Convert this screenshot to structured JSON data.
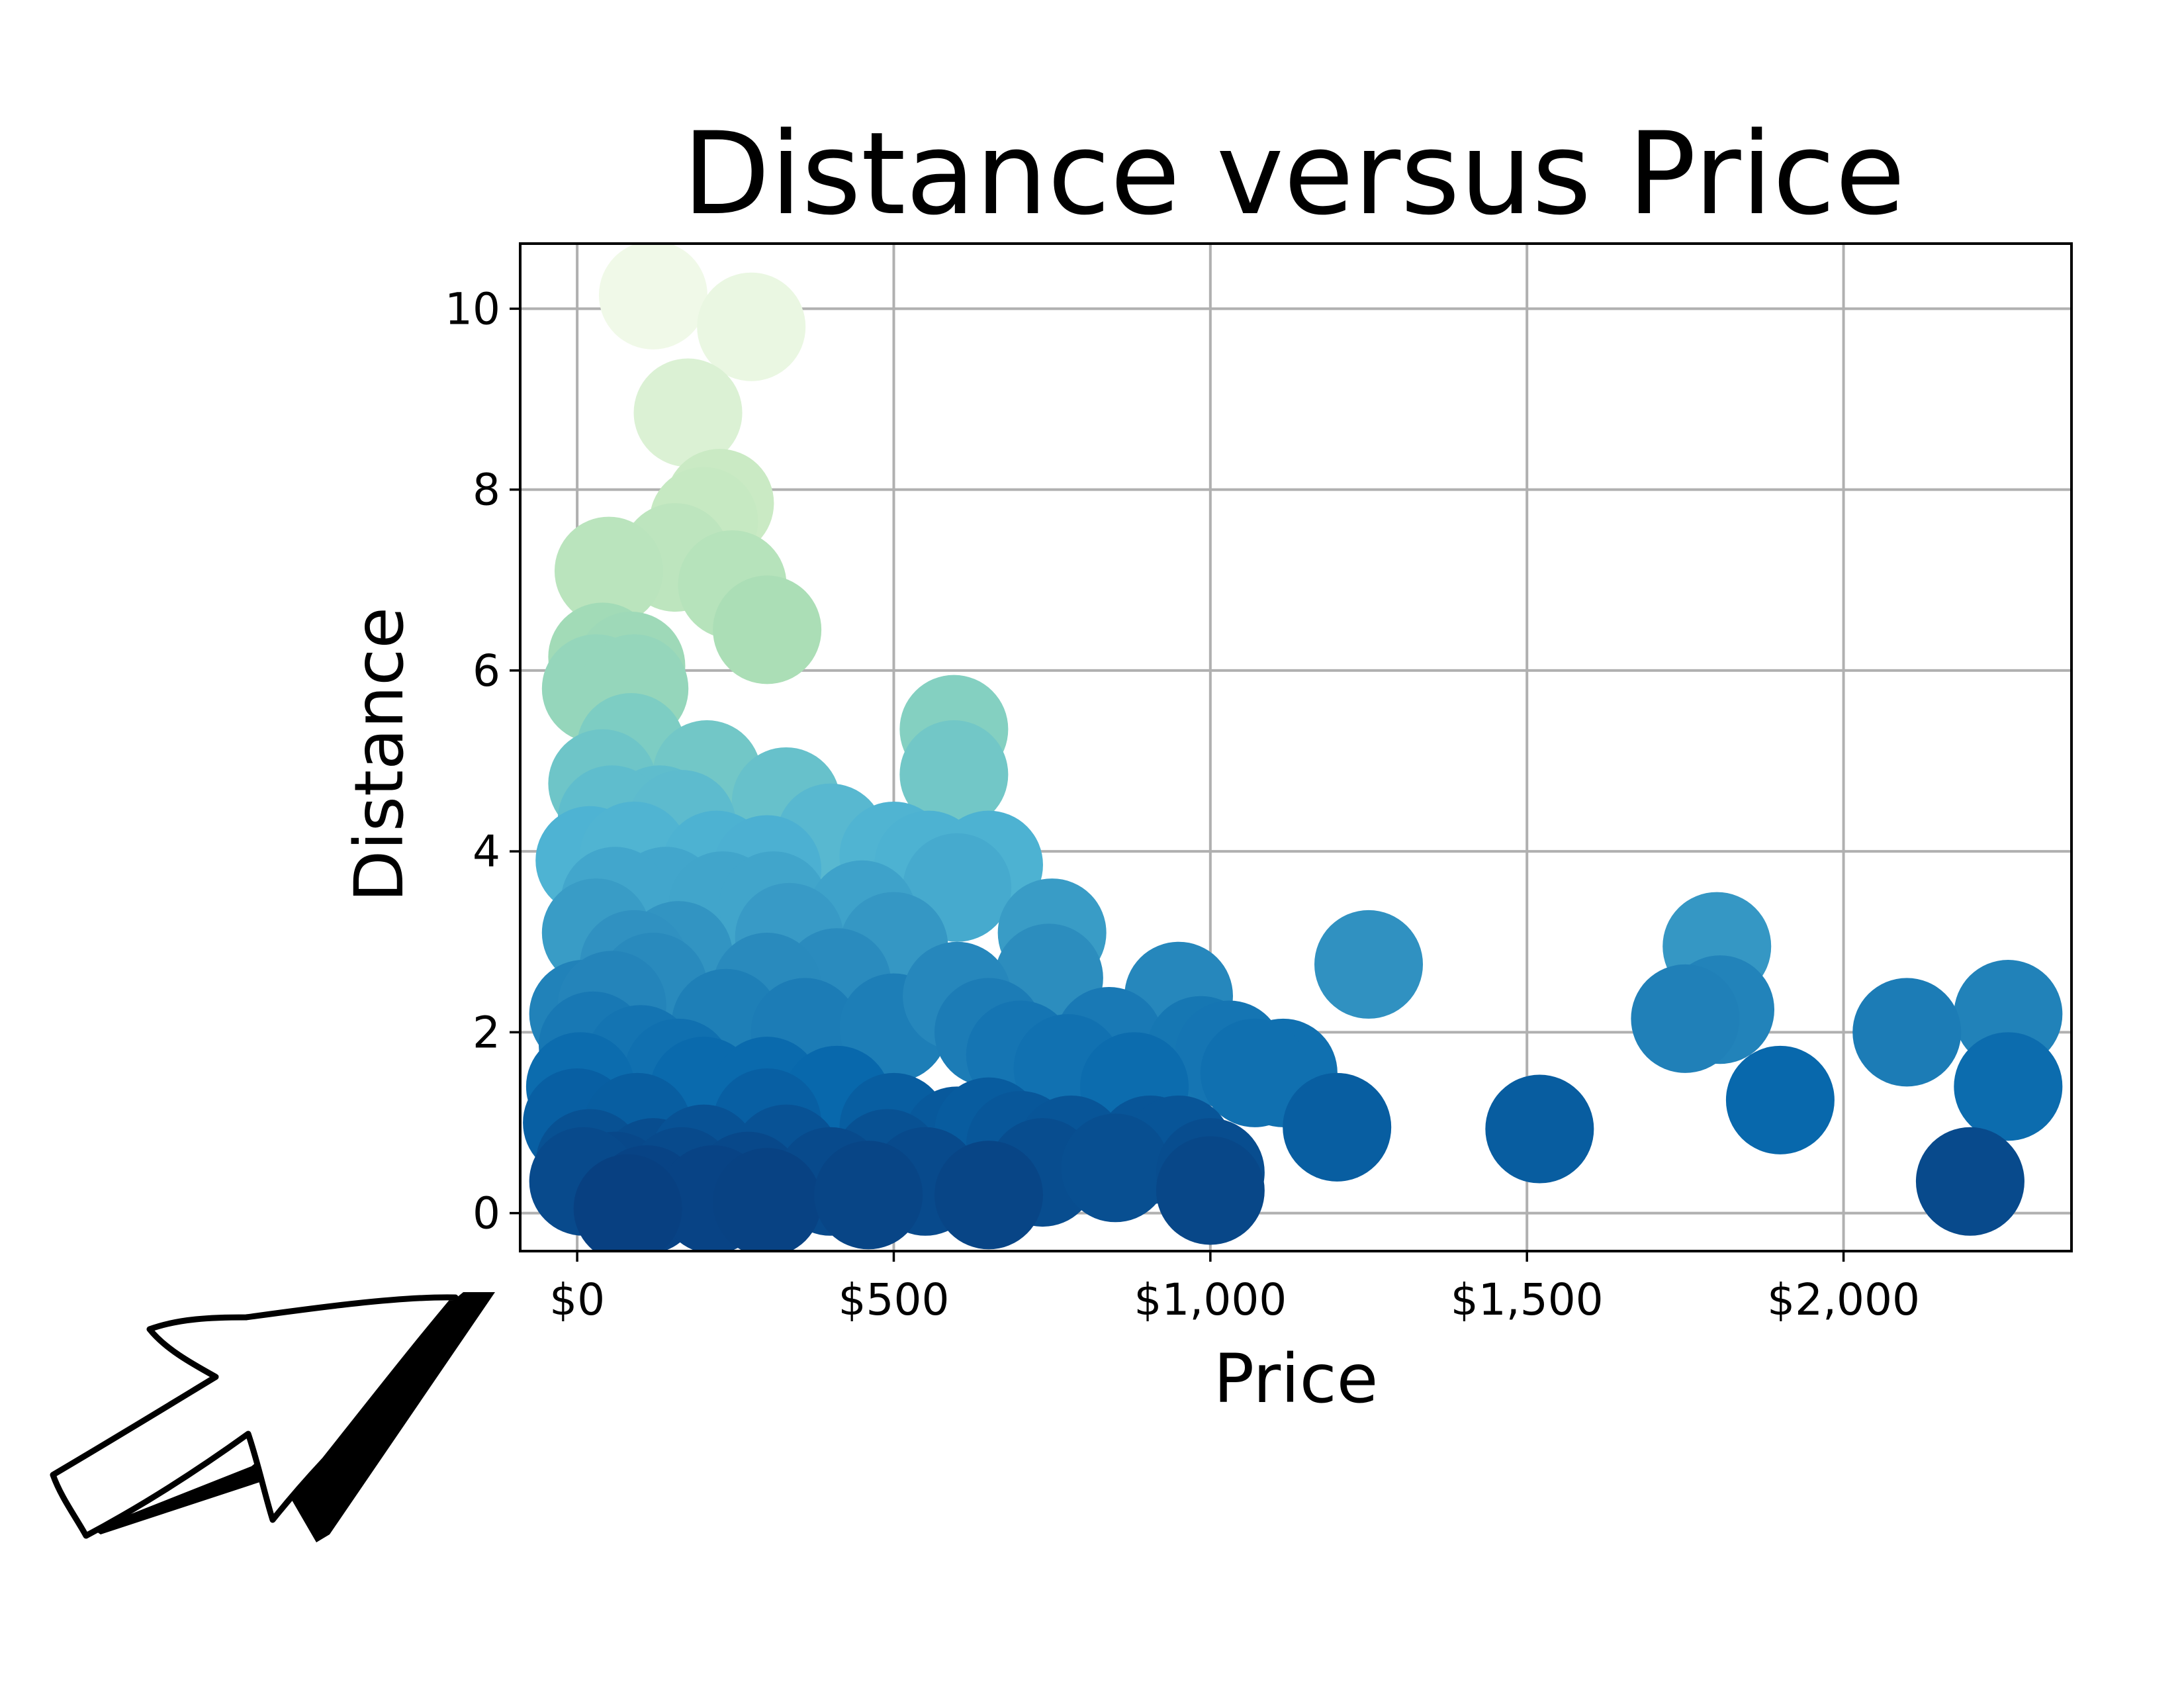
{
  "chart_data": {
    "type": "scatter",
    "title": "Distance versus Price",
    "xlabel": "Price",
    "ylabel": "Distance",
    "xlim": [
      -90,
      2360
    ],
    "ylim": [
      -0.42,
      10.72
    ],
    "grid": true,
    "legend": "none",
    "marker": "circle",
    "colormap": "GnBu",
    "color_by": "y",
    "x_ticks": [
      {
        "value": 0,
        "label": "$0"
      },
      {
        "value": 500,
        "label": "$500"
      },
      {
        "value": 1000,
        "label": "$1,000"
      },
      {
        "value": 1500,
        "label": "$1,500"
      },
      {
        "value": 2000,
        "label": "$2,000"
      }
    ],
    "y_ticks": [
      {
        "value": 0,
        "label": "0"
      },
      {
        "value": 2,
        "label": "2"
      },
      {
        "value": 4,
        "label": "4"
      },
      {
        "value": 6,
        "label": "6"
      },
      {
        "value": 8,
        "label": "8"
      },
      {
        "value": 10,
        "label": "10"
      }
    ],
    "points": [
      {
        "x": 120,
        "y": 10.15
      },
      {
        "x": 275,
        "y": 9.8
      },
      {
        "x": 175,
        "y": 8.85
      },
      {
        "x": 225,
        "y": 7.85
      },
      {
        "x": 200,
        "y": 7.65
      },
      {
        "x": 155,
        "y": 7.25
      },
      {
        "x": 50,
        "y": 7.1
      },
      {
        "x": 245,
        "y": 6.95
      },
      {
        "x": 300,
        "y": 6.45
      },
      {
        "x": 40,
        "y": 6.15
      },
      {
        "x": 85,
        "y": 6.05
      },
      {
        "x": 30,
        "y": 5.8
      },
      {
        "x": 90,
        "y": 5.8
      },
      {
        "x": 595,
        "y": 5.35
      },
      {
        "x": 595,
        "y": 4.85
      },
      {
        "x": 85,
        "y": 5.15
      },
      {
        "x": 40,
        "y": 4.75
      },
      {
        "x": 205,
        "y": 4.85
      },
      {
        "x": 330,
        "y": 4.55
      },
      {
        "x": 400,
        "y": 4.15
      },
      {
        "x": 130,
        "y": 4.35
      },
      {
        "x": 55,
        "y": 4.35
      },
      {
        "x": 165,
        "y": 4.3
      },
      {
        "x": 20,
        "y": 3.9
      },
      {
        "x": 90,
        "y": 3.95
      },
      {
        "x": 220,
        "y": 3.85
      },
      {
        "x": 300,
        "y": 3.8
      },
      {
        "x": 500,
        "y": 3.95
      },
      {
        "x": 555,
        "y": 3.85
      },
      {
        "x": 650,
        "y": 3.85
      },
      {
        "x": 600,
        "y": 3.6
      },
      {
        "x": 140,
        "y": 3.45
      },
      {
        "x": 60,
        "y": 3.45
      },
      {
        "x": 230,
        "y": 3.4
      },
      {
        "x": 310,
        "y": 3.4
      },
      {
        "x": 450,
        "y": 3.3
      },
      {
        "x": 30,
        "y": 3.1
      },
      {
        "x": 335,
        "y": 3.05
      },
      {
        "x": 750,
        "y": 3.1
      },
      {
        "x": 160,
        "y": 2.85
      },
      {
        "x": 500,
        "y": 2.95
      },
      {
        "x": 90,
        "y": 2.75
      },
      {
        "x": 120,
        "y": 2.5
      },
      {
        "x": 410,
        "y": 2.55
      },
      {
        "x": 745,
        "y": 2.6
      },
      {
        "x": 300,
        "y": 2.5
      },
      {
        "x": 1250,
        "y": 2.75
      },
      {
        "x": 1800,
        "y": 2.95
      },
      {
        "x": 1805,
        "y": 2.25
      },
      {
        "x": 1750,
        "y": 2.15
      },
      {
        "x": 950,
        "y": 2.4
      },
      {
        "x": 2260,
        "y": 2.2
      },
      {
        "x": 2100,
        "y": 2.0
      },
      {
        "x": 10,
        "y": 2.2
      },
      {
        "x": 55,
        "y": 2.3
      },
      {
        "x": 235,
        "y": 2.1
      },
      {
        "x": 360,
        "y": 2.0
      },
      {
        "x": 500,
        "y": 2.05
      },
      {
        "x": 600,
        "y": 2.4
      },
      {
        "x": 650,
        "y": 2.0
      },
      {
        "x": 840,
        "y": 1.9
      },
      {
        "x": 985,
        "y": 1.8
      },
      {
        "x": 1030,
        "y": 1.75
      },
      {
        "x": 1115,
        "y": 1.55
      },
      {
        "x": 1070,
        "y": 1.55
      },
      {
        "x": 25,
        "y": 1.85
      },
      {
        "x": 100,
        "y": 1.7
      },
      {
        "x": 160,
        "y": 1.55
      },
      {
        "x": 700,
        "y": 1.75
      },
      {
        "x": 775,
        "y": 1.6
      },
      {
        "x": 880,
        "y": 1.4
      },
      {
        "x": 2260,
        "y": 1.4
      },
      {
        "x": 1900,
        "y": 1.25
      },
      {
        "x": 5,
        "y": 1.4
      },
      {
        "x": 200,
        "y": 1.35
      },
      {
        "x": 300,
        "y": 1.35
      },
      {
        "x": 410,
        "y": 1.25
      },
      {
        "x": 1200,
        "y": 0.95
      },
      {
        "x": 1520,
        "y": 0.93
      },
      {
        "x": 0,
        "y": 1.0
      },
      {
        "x": 95,
        "y": 0.95
      },
      {
        "x": 300,
        "y": 1.0
      },
      {
        "x": 500,
        "y": 0.95
      },
      {
        "x": 600,
        "y": 0.8
      },
      {
        "x": 650,
        "y": 0.9
      },
      {
        "x": 700,
        "y": 0.75
      },
      {
        "x": 780,
        "y": 0.7
      },
      {
        "x": 905,
        "y": 0.7
      },
      {
        "x": 950,
        "y": 0.7
      },
      {
        "x": 20,
        "y": 0.55
      },
      {
        "x": 120,
        "y": 0.45
      },
      {
        "x": 200,
        "y": 0.6
      },
      {
        "x": 330,
        "y": 0.6
      },
      {
        "x": 490,
        "y": 0.55
      },
      {
        "x": 735,
        "y": 0.45
      },
      {
        "x": 850,
        "y": 0.5
      },
      {
        "x": 1000,
        "y": 0.45
      },
      {
        "x": 2200,
        "y": 0.35
      },
      {
        "x": 60,
        "y": 0.3
      },
      {
        "x": 165,
        "y": 0.35
      },
      {
        "x": 270,
        "y": 0.3
      },
      {
        "x": 400,
        "y": 0.35
      },
      {
        "x": 550,
        "y": 0.35
      },
      {
        "x": 10,
        "y": 0.35
      },
      {
        "x": 110,
        "y": 0.15
      },
      {
        "x": 215,
        "y": 0.15
      },
      {
        "x": 300,
        "y": 0.12
      },
      {
        "x": 460,
        "y": 0.2
      },
      {
        "x": 650,
        "y": 0.2
      },
      {
        "x": 80,
        "y": 0.05
      },
      {
        "x": 1000,
        "y": 0.25
      }
    ]
  }
}
